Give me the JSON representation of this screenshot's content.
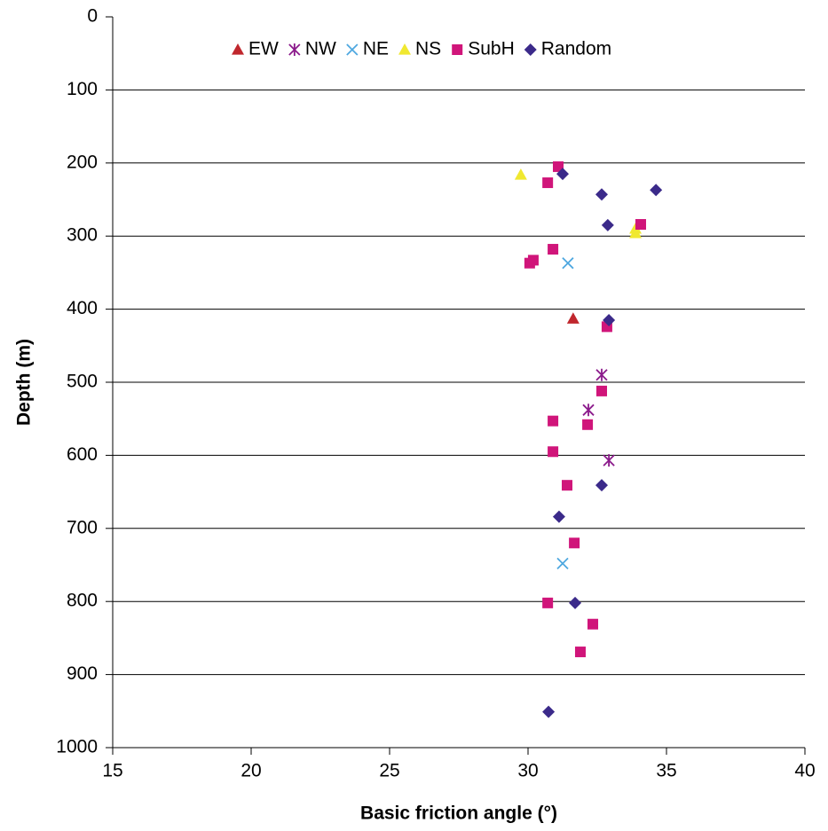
{
  "chart_data": {
    "type": "scatter",
    "x_label": "Basic friction angle (°)",
    "y_label": "Depth (m)",
    "xlim": [
      15,
      40
    ],
    "xticks": [
      15,
      20,
      25,
      30,
      35,
      40
    ],
    "ylim": [
      0,
      1000
    ],
    "yticks": [
      0,
      100,
      200,
      300,
      400,
      500,
      600,
      700,
      800,
      900,
      1000
    ],
    "y_inverted": true,
    "grid": true,
    "legend": "top",
    "series": [
      {
        "name": "EW",
        "color": "#c0272d",
        "marker": "triangle",
        "x": [
          31.63
        ],
        "values": [
          413
        ]
      },
      {
        "name": "NW",
        "color": "#8b1a8b",
        "marker": "star",
        "x": [
          32.66,
          32.18,
          32.92
        ],
        "values": [
          490,
          538,
          607
        ]
      },
      {
        "name": "NE",
        "color": "#4fa8e0",
        "marker": "cross",
        "x": [
          31.44,
          31.25
        ],
        "values": [
          337,
          748
        ]
      },
      {
        "name": "NS",
        "color": "#f0e830",
        "marker": "triangle",
        "x": [
          29.74,
          33.88,
          33.88
        ],
        "values": [
          216,
          290,
          296
        ]
      },
      {
        "name": "SubH",
        "color": "#d0157a",
        "marker": "square",
        "x": [
          31.09,
          30.71,
          34.07,
          30.9,
          30.19,
          30.06,
          32.85,
          32.66,
          30.9,
          32.15,
          30.9,
          31.41,
          31.67,
          30.71,
          32.34,
          31.89
        ],
        "values": [
          205,
          227,
          284,
          318,
          333,
          337,
          424,
          512,
          553,
          558,
          595,
          641,
          720,
          802,
          831,
          869
        ]
      },
      {
        "name": "Random",
        "color": "#3b2a8a",
        "marker": "diamond",
        "x": [
          31.25,
          34.62,
          32.66,
          32.88,
          32.92,
          32.66,
          31.12,
          31.7,
          30.74
        ],
        "values": [
          215,
          237,
          243,
          285,
          415,
          641,
          684,
          802,
          951
        ]
      }
    ]
  }
}
